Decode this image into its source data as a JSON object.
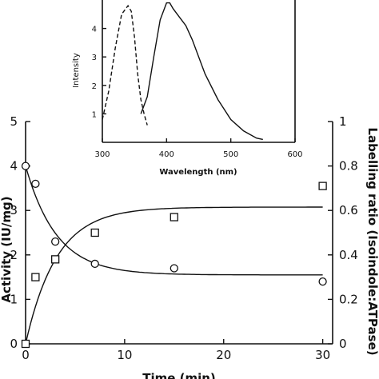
{
  "chart_data": [
    {
      "type": "scatter",
      "title": "",
      "xlabel": "Time (min)",
      "ylabel_left": "Activity (IU/mg)",
      "ylabel_right": "Labelling ratio (Isoindole:ATPase)",
      "xlim": [
        0,
        31
      ],
      "ylim_left": [
        0,
        5
      ],
      "ylim_right": [
        0,
        1
      ],
      "x_ticks": [
        "0",
        "10",
        "20",
        "30"
      ],
      "y_ticks_left": [
        "0",
        "1",
        "2",
        "3",
        "4",
        "5"
      ],
      "y_ticks_right": [
        "0",
        "0.2",
        "0.4",
        "0.6",
        "0.8",
        "1"
      ],
      "series": [
        {
          "marker": "circle",
          "axis": "left",
          "points": [
            [
              0,
              4.0
            ],
            [
              1,
              3.6
            ],
            [
              3,
              2.3
            ],
            [
              7,
              1.8
            ],
            [
              15,
              1.7
            ],
            [
              30,
              1.4
            ]
          ]
        },
        {
          "marker": "square",
          "axis": "right",
          "points": [
            [
              0,
              0.0
            ],
            [
              1,
              0.3
            ],
            [
              3,
              0.38
            ],
            [
              7,
              0.5
            ],
            [
              15,
              0.57
            ],
            [
              30,
              0.71
            ]
          ]
        }
      ],
      "fits": [
        {
          "axis": "left",
          "model": "exponential decay",
          "y0": 4.0,
          "plateau": 1.55,
          "rate": 0.32
        },
        {
          "axis": "right",
          "model": "exponential rise",
          "y0": 0.0,
          "plateau": 0.615,
          "rate": 0.32
        }
      ]
    },
    {
      "type": "line",
      "title": "",
      "xlabel": "Wavelength (nm)",
      "ylabel": "Intensity",
      "xlim": [
        300,
        600
      ],
      "ylim": [
        0,
        5
      ],
      "x_ticks": [
        "300",
        "400",
        "500",
        "600"
      ],
      "y_ticks": [
        "1",
        "2",
        "3",
        "4"
      ],
      "series": [
        {
          "style": "dashed",
          "x": [
            300,
            310,
            320,
            330,
            340,
            345,
            350,
            355,
            360,
            365,
            370
          ],
          "y": [
            0.8,
            1.8,
            3.3,
            4.5,
            4.8,
            4.6,
            3.7,
            2.4,
            1.5,
            1.0,
            0.6
          ]
        },
        {
          "style": "solid",
          "x": [
            360,
            370,
            380,
            390,
            400,
            405,
            410,
            420,
            430,
            440,
            460,
            480,
            500,
            520,
            540,
            550
          ],
          "y": [
            1.0,
            1.6,
            3.0,
            4.3,
            4.9,
            4.9,
            4.7,
            4.4,
            4.1,
            3.6,
            2.4,
            1.5,
            0.8,
            0.4,
            0.15,
            0.1
          ]
        }
      ]
    }
  ]
}
